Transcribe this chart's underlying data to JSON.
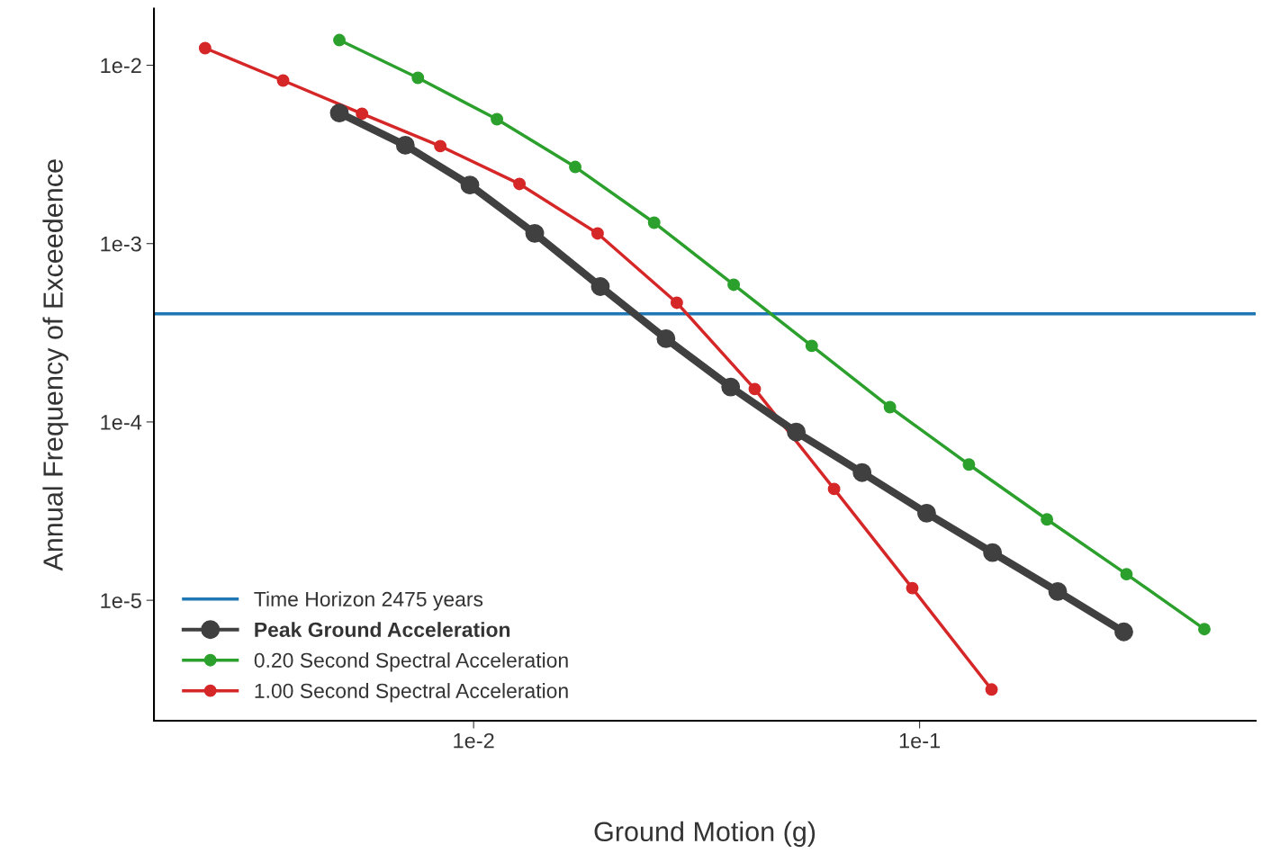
{
  "chart_data": {
    "type": "line",
    "xlabel": "Ground Motion (g)",
    "ylabel": "Annual Frequency of Exceedence",
    "log": "xy",
    "grid": false,
    "legend": "bottom left",
    "marker": "circle",
    "line_style": "solid",
    "xlim": [
      0.00192,
      0.567
    ],
    "ylim": [
      2.11e-06,
      0.0208
    ],
    "xticks": [
      {
        "value": 0.01,
        "label": "1e-2"
      },
      {
        "value": 0.1,
        "label": "1e-1"
      }
    ],
    "yticks": [
      {
        "value": 1e-05,
        "label": "1e-5"
      },
      {
        "value": 0.0001,
        "label": "1e-4"
      },
      {
        "value": 0.001,
        "label": "1e-3"
      },
      {
        "value": 0.01,
        "label": "1e-2"
      }
    ],
    "ref_lines": [
      {
        "axis": "y",
        "value": 0.000404,
        "label": "Time Horizon 2475 years",
        "color": "#1f77b4"
      }
    ],
    "series": [
      {
        "name": "Peak Ground Acceleration",
        "color": "#404040",
        "x": [
          0.005,
          0.00703,
          0.00981,
          0.01371,
          0.01924,
          0.027,
          0.0377,
          0.0529,
          0.0743,
          0.1037,
          0.1457,
          0.204,
          0.287
        ],
        "values": [
          0.0054,
          0.00356,
          0.00213,
          0.00114,
          0.000574,
          0.000293,
          0.000157,
          8.77e-05,
          5.2e-05,
          3.08e-05,
          1.85e-05,
          1.12e-05,
          6.65e-06
        ]
      },
      {
        "name": "0.20 Second Spectral Acceleration",
        "color": "#2ca02c",
        "x": [
          0.005,
          0.0075,
          0.01128,
          0.0169,
          0.0254,
          0.0383,
          0.0573,
          0.0858,
          0.129,
          0.193,
          0.291,
          0.435
        ],
        "values": [
          0.01384,
          0.0085,
          0.00498,
          0.00269,
          0.00131,
          0.000588,
          0.000267,
          0.000121,
          5.77e-05,
          2.84e-05,
          1.4e-05,
          6.89e-06
        ]
      },
      {
        "name": "1.00 Second Spectral Acceleration",
        "color": "#d62728",
        "x": [
          0.0025,
          0.00374,
          0.00562,
          0.00842,
          0.01267,
          0.01897,
          0.02855,
          0.0427,
          0.0643,
          0.0963,
          0.145
        ],
        "values": [
          0.01247,
          0.00821,
          0.00535,
          0.00352,
          0.00216,
          0.00114,
          0.000466,
          0.000153,
          4.21e-05,
          1.17e-05,
          3.16e-06
        ]
      }
    ]
  }
}
